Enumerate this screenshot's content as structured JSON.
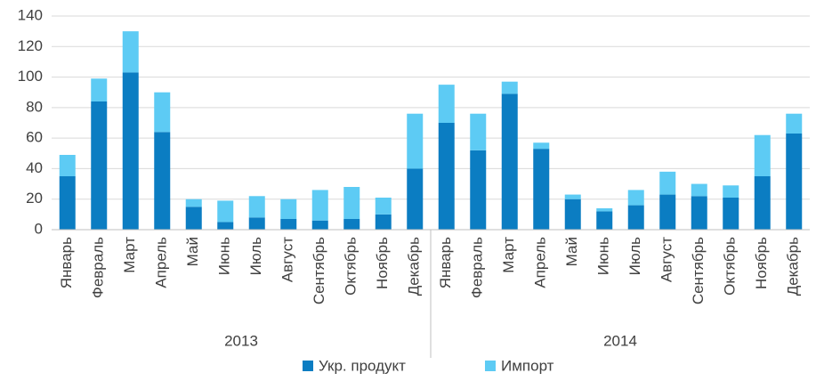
{
  "chart_data": {
    "type": "stacked_bar",
    "groups": [
      {
        "label": "2013",
        "categories": [
          "Январь",
          "Февраль",
          "Март",
          "Апрель",
          "Май",
          "Июнь",
          "Июль",
          "Август",
          "Сентябрь",
          "Октябрь",
          "Ноябрь",
          "Декабрь"
        ]
      },
      {
        "label": "2014",
        "categories": [
          "Январь",
          "Февраль",
          "Март",
          "Апрель",
          "Май",
          "Июнь",
          "Июль",
          "Август",
          "Сентябрь",
          "Октябрь",
          "Ноябрь",
          "Декабрь"
        ]
      }
    ],
    "series": [
      {
        "name": "Укр. продукт",
        "color": "#0b7dc2",
        "values": [
          35,
          84,
          103,
          64,
          15,
          5,
          8,
          7,
          6,
          7,
          10,
          40,
          70,
          52,
          89,
          53,
          20,
          12,
          16,
          23,
          22,
          21,
          35,
          63
        ]
      },
      {
        "name": "Импорт",
        "color": "#5dcbf4",
        "values": [
          14,
          15,
          27,
          26,
          5,
          14,
          14,
          13,
          20,
          21,
          11,
          36,
          25,
          24,
          8,
          4,
          3,
          2,
          10,
          15,
          8,
          8,
          27,
          13
        ]
      }
    ],
    "ylim": [
      0,
      140
    ],
    "yticks": [
      0,
      20,
      40,
      60,
      80,
      100,
      120,
      140
    ],
    "grid": true,
    "legend": "bottom"
  }
}
